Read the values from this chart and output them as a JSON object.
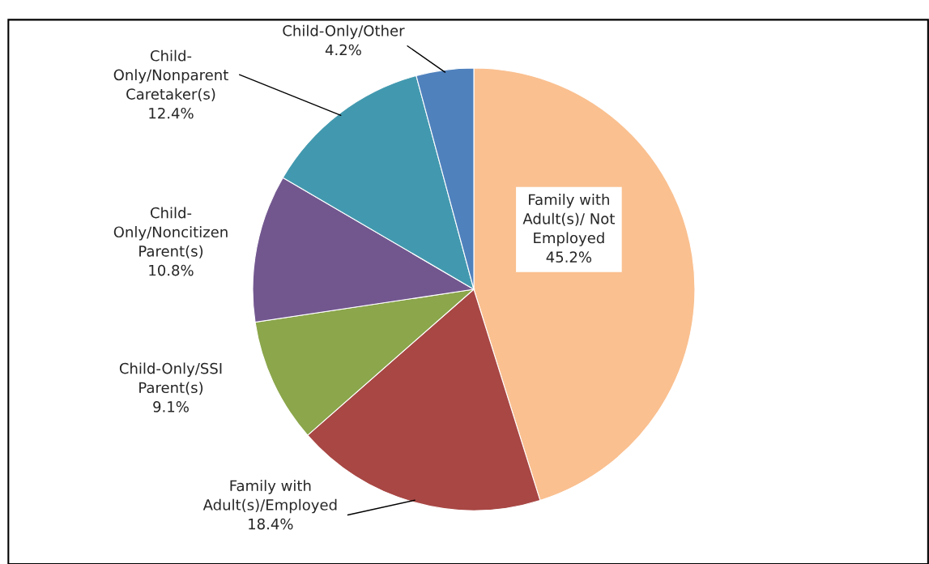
{
  "chart_data": {
    "type": "pie",
    "categories": [
      "Family with\nAdult(s)/ Not\nEmployed",
      "Family with\nAdult(s)/Employed",
      "Child-Only/SSI\nParent(s)",
      "Child-\nOnly/Noncitizen\nParent(s)",
      "Child-\nOnly/Nonparent\nCaretaker(s)",
      "Child-Only/Other"
    ],
    "values": [
      45.2,
      18.4,
      9.1,
      10.8,
      12.4,
      4.2
    ],
    "value_labels": [
      "45.2%",
      "18.4%",
      "9.1%",
      "10.8%",
      "12.4%",
      "4.2%"
    ],
    "colors": [
      "#fac090",
      "#a84744",
      "#8ba64b",
      "#72578f",
      "#4299af",
      "#4f81bd"
    ],
    "legend": false
  }
}
